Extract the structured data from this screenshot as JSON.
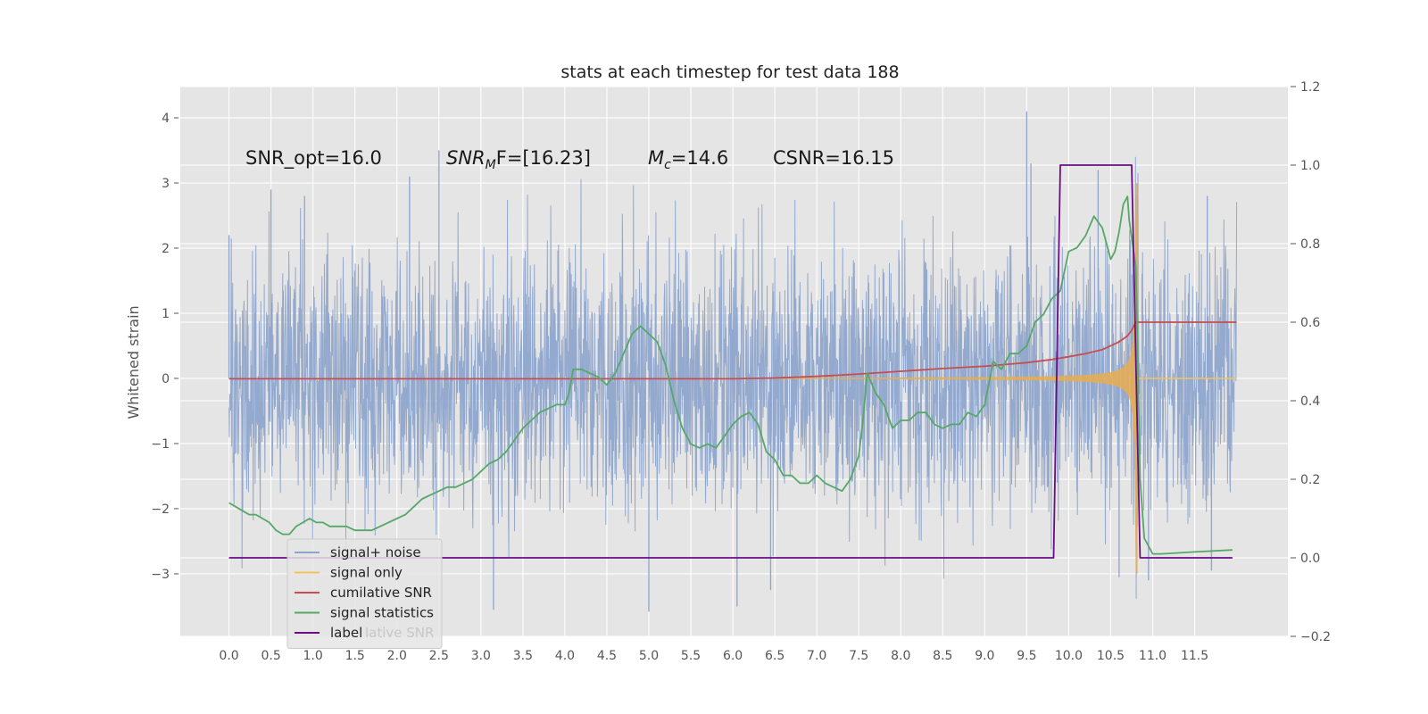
{
  "chart_data": {
    "type": "line",
    "title": "stats at each timestep for test data 188",
    "ylabel": "Whitened strain",
    "xlim": [
      -0.58,
      12.61
    ],
    "ylim": [
      -3.96,
      4.48
    ],
    "y2lim": [
      -0.2,
      1.2
    ],
    "grid": true,
    "background": "#e5e5e5",
    "x_ticks": [
      "0.0",
      "0.5",
      "1.0",
      "1.5",
      "2.0",
      "2.5",
      "3.0",
      "3.5",
      "4.0",
      "4.5",
      "5.0",
      "5.5",
      "6.0",
      "6.5",
      "7.0",
      "7.5",
      "8.0",
      "8.5",
      "9.0",
      "9.5",
      "10.0",
      "10.5",
      "11.0",
      "11.5"
    ],
    "y_ticks": [
      "−3",
      "−2",
      "−1",
      "0",
      "1",
      "2",
      "3",
      "4"
    ],
    "y2_ticks": [
      "−0.2",
      "0.0",
      "0.2",
      "0.4",
      "0.6",
      "0.8",
      "1.0",
      "1.2"
    ],
    "annotations": [
      {
        "id": "snr-opt",
        "text": "SNR_opt=16.0"
      },
      {
        "id": "snr-mf",
        "base": "SNR",
        "sub": "M",
        "rest": "F=[16.23]"
      },
      {
        "id": "mc",
        "base": "M",
        "sub": "c",
        "rest": "=14.6"
      },
      {
        "id": "csnr",
        "text": "CSNR=16.15"
      }
    ],
    "legend": {
      "placement": "lower-left",
      "entries": [
        {
          "label": "signal+ noise",
          "color": "#8fa5cc"
        },
        {
          "label": "signal only",
          "color": "#f2c45a"
        },
        {
          "label": "cumilative SNR",
          "color": "#c44e52"
        },
        {
          "label": "signal statistics",
          "color": "#55a868"
        },
        {
          "label": "label",
          "color": "#6a0d83"
        }
      ],
      "ghost_text": "lative SNR"
    },
    "series": [
      {
        "name": "signal+ noise",
        "axis": "left",
        "color": "#8fa5cc",
        "x_range": [
          0.0,
          12.0
        ],
        "baseline_sigma": 1.05,
        "spikes": [
          {
            "x": 0.0,
            "y": 2.2
          },
          {
            "x": 0.5,
            "y": 2.9
          },
          {
            "x": 0.9,
            "y": 2.8
          },
          {
            "x": 2.15,
            "y": 3.1
          },
          {
            "x": 2.5,
            "y": 3.5
          },
          {
            "x": 3.15,
            "y": -3.55
          },
          {
            "x": 5.0,
            "y": -3.58
          },
          {
            "x": 6.0,
            "y": 0.75
          },
          {
            "x": 6.05,
            "y": -3.5
          },
          {
            "x": 6.45,
            "y": -3.25
          },
          {
            "x": 9.5,
            "y": 4.1
          },
          {
            "x": 9.55,
            "y": 3.3
          },
          {
            "x": 10.35,
            "y": 3.2
          },
          {
            "x": 10.6,
            "y": -3.05
          },
          {
            "x": 10.95,
            "y": -3.1
          },
          {
            "x": 11.65,
            "y": 2.8
          },
          {
            "x": 11.7,
            "y": -2.95
          }
        ]
      },
      {
        "name": "signal only",
        "axis": "left",
        "color": "#f2c45a",
        "x_range": [
          6.5,
          12.0
        ],
        "peak_time": 10.8,
        "peak_amplitude": 3.0
      },
      {
        "name": "cumilative SNR",
        "axis": "right",
        "color": "#c44e52",
        "x": [
          0.0,
          6.0,
          6.5,
          7.0,
          7.5,
          8.0,
          8.5,
          9.0,
          9.5,
          9.8,
          10.0,
          10.2,
          10.4,
          10.5,
          10.6,
          10.7,
          10.75,
          10.8,
          12.0
        ],
        "values": [
          0.456,
          0.456,
          0.458,
          0.462,
          0.468,
          0.475,
          0.482,
          0.488,
          0.497,
          0.505,
          0.512,
          0.52,
          0.53,
          0.54,
          0.55,
          0.565,
          0.58,
          0.6,
          0.6
        ]
      },
      {
        "name": "signal statistics",
        "axis": "right",
        "color": "#55a868",
        "x": [
          0.0,
          0.08,
          0.16,
          0.24,
          0.32,
          0.4,
          0.48,
          0.56,
          0.64,
          0.72,
          0.8,
          0.88,
          0.96,
          1.04,
          1.12,
          1.2,
          1.3,
          1.4,
          1.5,
          1.6,
          1.7,
          1.8,
          1.9,
          2.0,
          2.1,
          2.2,
          2.3,
          2.4,
          2.5,
          2.6,
          2.7,
          2.8,
          2.9,
          3.0,
          3.1,
          3.2,
          3.3,
          3.4,
          3.5,
          3.6,
          3.7,
          3.8,
          3.9,
          4.0,
          4.05,
          4.1,
          4.2,
          4.3,
          4.4,
          4.5,
          4.6,
          4.7,
          4.8,
          4.9,
          5.0,
          5.1,
          5.2,
          5.3,
          5.4,
          5.5,
          5.6,
          5.7,
          5.8,
          5.9,
          6.0,
          6.1,
          6.2,
          6.3,
          6.4,
          6.5,
          6.6,
          6.7,
          6.8,
          6.9,
          7.0,
          7.1,
          7.2,
          7.3,
          7.4,
          7.5,
          7.55,
          7.6,
          7.7,
          7.8,
          7.9,
          8.0,
          8.1,
          8.2,
          8.3,
          8.4,
          8.5,
          8.6,
          8.7,
          8.8,
          8.9,
          9.0,
          9.1,
          9.2,
          9.3,
          9.4,
          9.5,
          9.6,
          9.7,
          9.8,
          9.9,
          10.0,
          10.1,
          10.2,
          10.3,
          10.4,
          10.5,
          10.55,
          10.6,
          10.65,
          10.7,
          10.72,
          10.76,
          10.8,
          10.85,
          10.9,
          11.0,
          11.1,
          11.5,
          11.95
        ],
        "values": [
          0.14,
          0.13,
          0.12,
          0.11,
          0.11,
          0.1,
          0.09,
          0.07,
          0.06,
          0.06,
          0.08,
          0.09,
          0.1,
          0.09,
          0.09,
          0.08,
          0.08,
          0.08,
          0.07,
          0.07,
          0.07,
          0.08,
          0.09,
          0.1,
          0.11,
          0.13,
          0.15,
          0.16,
          0.17,
          0.18,
          0.18,
          0.19,
          0.2,
          0.22,
          0.24,
          0.25,
          0.27,
          0.3,
          0.33,
          0.35,
          0.37,
          0.38,
          0.39,
          0.39,
          0.42,
          0.48,
          0.48,
          0.47,
          0.46,
          0.44,
          0.47,
          0.52,
          0.57,
          0.59,
          0.57,
          0.55,
          0.49,
          0.4,
          0.33,
          0.29,
          0.28,
          0.29,
          0.28,
          0.31,
          0.34,
          0.36,
          0.37,
          0.34,
          0.27,
          0.25,
          0.21,
          0.21,
          0.19,
          0.19,
          0.21,
          0.19,
          0.18,
          0.17,
          0.2,
          0.26,
          0.35,
          0.47,
          0.42,
          0.39,
          0.33,
          0.35,
          0.35,
          0.37,
          0.37,
          0.34,
          0.33,
          0.34,
          0.34,
          0.37,
          0.36,
          0.39,
          0.5,
          0.48,
          0.52,
          0.52,
          0.54,
          0.6,
          0.62,
          0.66,
          0.68,
          0.78,
          0.79,
          0.82,
          0.87,
          0.84,
          0.76,
          0.78,
          0.83,
          0.9,
          0.92,
          0.86,
          0.8,
          0.74,
          0.2,
          0.05,
          0.01,
          0.01,
          0.015,
          0.02
        ]
      },
      {
        "name": "label",
        "axis": "right",
        "color": "#6a0d83",
        "x": [
          0.0,
          9.82,
          9.9,
          10.75,
          10.85,
          11.95
        ],
        "values": [
          0.0,
          0.0,
          1.0,
          1.0,
          0.0,
          0.0
        ]
      }
    ]
  }
}
